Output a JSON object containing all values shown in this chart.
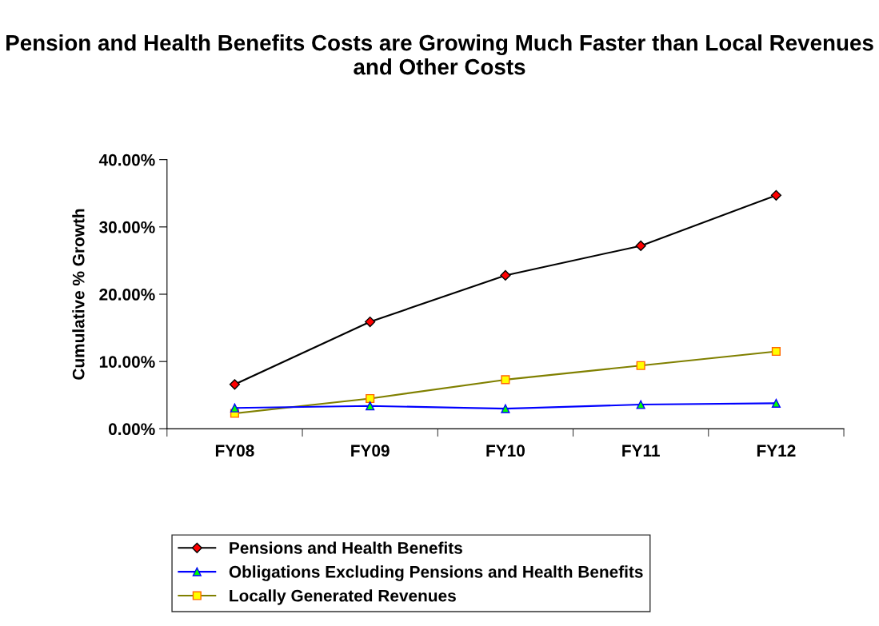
{
  "chart_data": {
    "type": "line",
    "title": "Pension and Health Benefits Costs are Growing Much Faster than Local Revenues and Other Costs",
    "ylabel": "Cumulative % Growth",
    "categories": [
      "FY08",
      "FY09",
      "FY10",
      "FY11",
      "FY12"
    ],
    "series": [
      {
        "name": "Pensions and Health Benefits",
        "color": "#000000",
        "marker": "diamond",
        "values": [
          6.6,
          15.9,
          22.8,
          27.2,
          34.7
        ]
      },
      {
        "name": "Obligations Excluding Pensions and Health Benefits",
        "color": "#0000ff",
        "marker": "triangle",
        "values": [
          3.1,
          3.4,
          3.0,
          3.6,
          3.8
        ]
      },
      {
        "name": "Locally Generated Revenues",
        "color": "#808000",
        "marker": "square",
        "values": [
          2.3,
          4.5,
          7.3,
          9.4,
          11.5
        ]
      }
    ],
    "ylim": [
      0,
      40
    ],
    "yticks": [
      {
        "value": 0,
        "label": "0.00%"
      },
      {
        "value": 10,
        "label": "10.00%"
      },
      {
        "value": 20,
        "label": "20.00%"
      },
      {
        "value": 30,
        "label": "30.00%"
      },
      {
        "value": 40,
        "label": "40.00%"
      }
    ],
    "grid": false,
    "legend": "bottom",
    "line_style": "solid"
  }
}
